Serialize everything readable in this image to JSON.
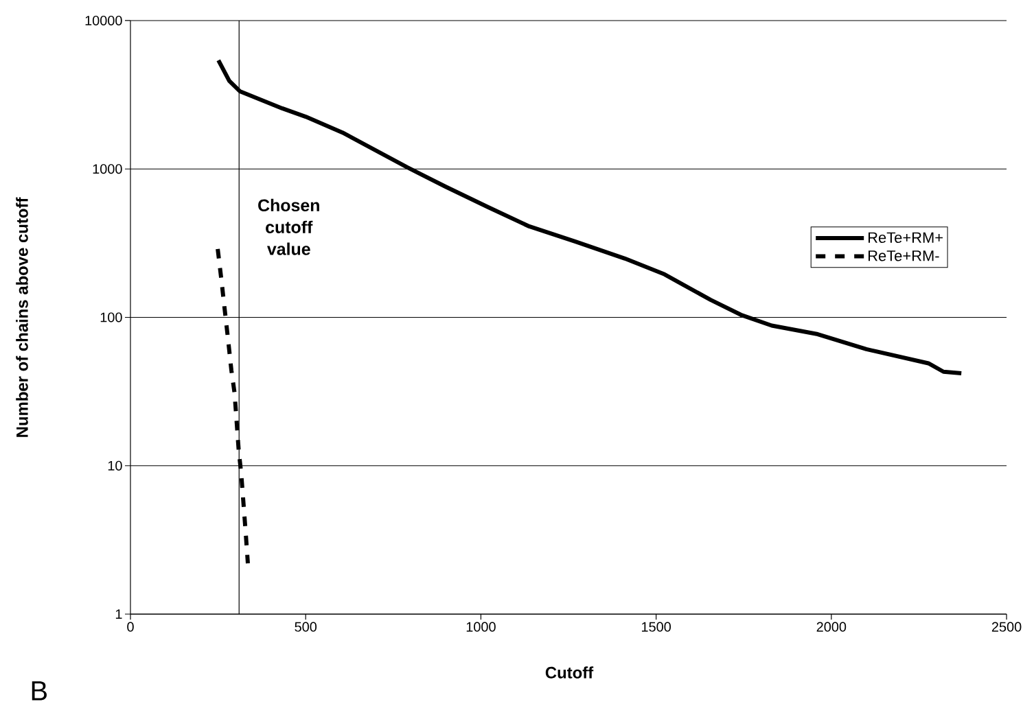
{
  "chart_data": {
    "type": "line",
    "xlabel": "Cutoff",
    "ylabel": "Number of chains above cutoff",
    "xlim": [
      0,
      2500
    ],
    "xticks": [
      0,
      500,
      1000,
      1500,
      2000,
      2500
    ],
    "ylim": [
      1,
      10000
    ],
    "yticks": [
      1,
      10,
      100,
      1000,
      10000
    ],
    "log": "y",
    "grid": "y",
    "legend": "right",
    "marker": "none",
    "series": [
      {
        "name": "ReTe+RM+",
        "color": "#000000",
        "line_style": "solid",
        "x": [
          251,
          282,
          312,
          433,
          500,
          605,
          696,
          790,
          899,
          1021,
          1138,
          1270,
          1411,
          1524,
          1577,
          1656,
          1742,
          1830,
          1961,
          2100,
          2277,
          2320,
          2371
        ],
        "values": [
          5400,
          3920,
          3340,
          2560,
          2250,
          1760,
          1350,
          1025,
          760,
          552,
          410,
          324,
          249,
          195,
          166,
          131,
          104,
          88,
          77,
          61,
          49,
          43,
          42
        ]
      },
      {
        "name": "ReTe+RM-",
        "color": "#000000",
        "line_style": "dashed",
        "x": [
          249,
          260,
          268,
          278,
          288,
          297,
          309,
          316,
          329,
          335
        ],
        "values": [
          289,
          175,
          118,
          73,
          44,
          31,
          12.6,
          8.9,
          3.5,
          2.2
        ]
      }
    ],
    "ref_lines": [
      {
        "axis": "x",
        "value": 310,
        "label": "Chosen cutoff value",
        "color": "#000000"
      }
    ],
    "annotations": [
      "B"
    ]
  }
}
